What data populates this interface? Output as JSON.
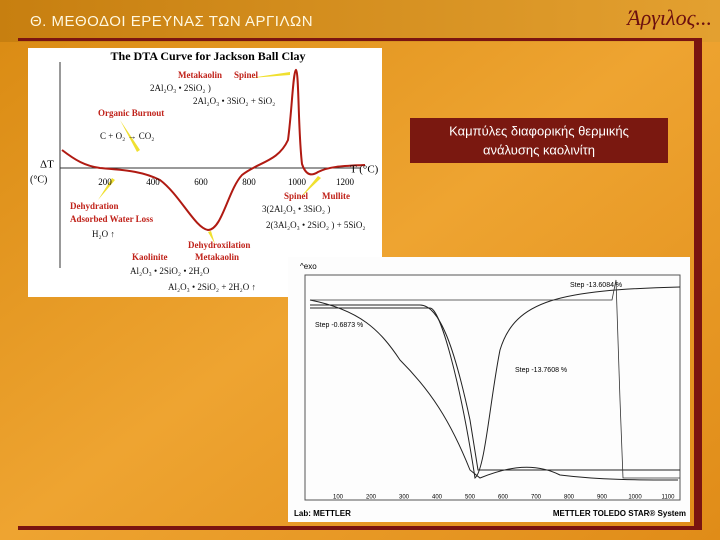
{
  "header": {
    "section_title": "Θ. ΜΕΘΟΔΟΙ ΕΡΕΥΝΑΣ ΤΩΝ ΑΡΓΙΛΩΝ",
    "brand": "Άργιλος..."
  },
  "caption": {
    "lines": [
      "Καμπύλες διαφορικής θερμικής",
      "ανάλυσης καολινίτη"
    ]
  },
  "figure_dta": {
    "title": "The DTA Curve for Jackson Ball Clay",
    "y_label": [
      "ΔT",
      "(°C)"
    ],
    "x_label": "T (°C)",
    "x_ticks": [
      "200",
      "400",
      "600",
      "800",
      "1000",
      "1200"
    ],
    "annotations": [
      "Metakaolin",
      "Spinel",
      "2Al₂O₃ • 2SiO₂ )",
      "2Al₂O₃ • 3SiO₂ + SiO₂",
      "Organic Burnout",
      "C + O₂ → CO₂",
      "Dehydration",
      "Adsorbed Water Loss",
      "H₂O ↑",
      "Spinel",
      "Mullite",
      "3(2Al₂O₃ • 3SiO₂ )",
      "2(3Al₂O₃ • 2SiO₂ ) + 5SiO₂",
      "Dehydroxilation",
      "Kaolinite",
      "Metakaolin",
      "Al₂O₃ • 2SiO₂ • 2H₂O",
      "Al₂O₃ • 2SiO₂ + 2H₂O ↑"
    ]
  },
  "figure_tga": {
    "exo": "^exo",
    "steps": [
      "Step -0.6873 %",
      "Step -13.6084 %",
      "Step -13.7608 %"
    ],
    "x_ticks": [
      "100",
      "200",
      "300",
      "400",
      "500",
      "600",
      "700",
      "800",
      "900",
      "1000",
      "1100"
    ],
    "lab": "Lab: METTLER",
    "system": "METTLER TOLEDO STAR® System"
  }
}
